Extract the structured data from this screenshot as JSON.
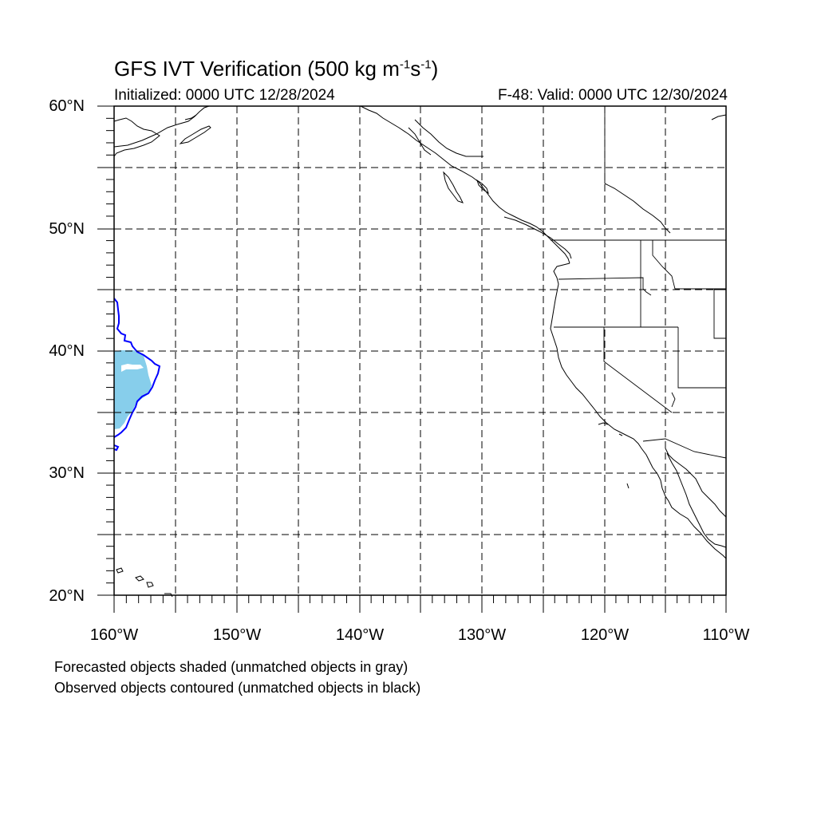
{
  "title": {
    "main": "GFS IVT Verification (500 kg m",
    "sup1": "-1",
    "mid": "s",
    "sup2": "-1",
    "end": ")"
  },
  "initialized": "Initialized: 0000 UTC 12/28/2024",
  "valid": "F-48: Valid: 0000 UTC 12/30/2024",
  "map": {
    "projection": "cylindrical-equidistant",
    "lon_range": [
      -160,
      -110
    ],
    "lat_range": [
      20,
      60
    ],
    "grid": "dashed every 5 degrees",
    "lat_labels": [
      "60°N",
      "50°N",
      "40°N",
      "30°N",
      "20°N"
    ],
    "lon_labels": [
      "160°W",
      "150°W",
      "140°W",
      "130°W",
      "120°W",
      "110°W"
    ],
    "forecast_object_color": "#87ceeb",
    "observed_object_color": "#0000ff",
    "coastline_color": "#000000"
  },
  "footer": {
    "line1": "Forecasted objects shaded (unmatched objects in gray)",
    "line2": "Observed objects contoured (unmatched objects in black)"
  }
}
